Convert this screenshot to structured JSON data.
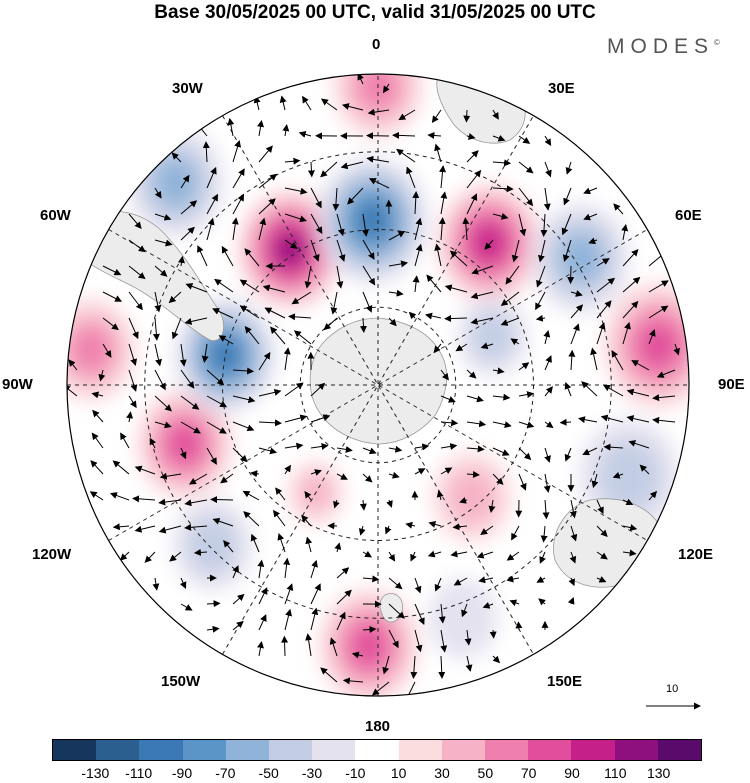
{
  "title": "Base 30/05/2025 00 UTC, valid 31/05/2025 00 UTC",
  "brand": "MODES",
  "brand_mark": "©",
  "longitude_labels": {
    "0": "0",
    "30E": "30E",
    "60E": "60E",
    "90E": "90E",
    "120E": "120E",
    "150E": "150E",
    "180": "180",
    "150W": "150W",
    "120W": "120W",
    "90W": "90W",
    "60W": "60W",
    "30W": "30W"
  },
  "reference_vector": "10",
  "colorbar": {
    "colors": [
      "#17365d",
      "#2a5f8f",
      "#3b79b4",
      "#5b95c7",
      "#8fb3d9",
      "#c2cde4",
      "#e4e2ef",
      "#ffffff",
      "#fbdcdf",
      "#f6b2c6",
      "#ef80ad",
      "#e14f9c",
      "#c51f8a",
      "#8e107f",
      "#5a0a6a"
    ],
    "ticks": [
      "-130",
      "-110",
      "-90",
      "-70",
      "-50",
      "-30",
      "-10",
      "10",
      "30",
      "50",
      "70",
      "90",
      "110",
      "130"
    ]
  },
  "anomaly_centers": [
    {
      "lon": 2,
      "colat": 0.84,
      "level": 4,
      "r": 50
    },
    {
      "lon": 46,
      "colat": 0.74,
      "level": -2,
      "r": 40
    },
    {
      "lon": 73,
      "colat": 0.65,
      "level": 4,
      "r": 48
    },
    {
      "lon": 97,
      "colat": 0.93,
      "level": 3,
      "r": 45
    },
    {
      "lon": 101,
      "colat": 0.5,
      "level": -5,
      "r": 50
    },
    {
      "lon": 147,
      "colat": 0.52,
      "level": 6,
      "r": 52
    },
    {
      "lon": 135,
      "colat": 0.92,
      "level": -3,
      "r": 48
    },
    {
      "lon": 178,
      "colat": 0.53,
      "level": -5,
      "r": 55
    },
    {
      "lon": 180,
      "colat": 0.96,
      "level": 3,
      "r": 45
    },
    {
      "lon": 218,
      "colat": 0.58,
      "level": 5,
      "r": 52
    },
    {
      "lon": 238,
      "colat": 0.77,
      "level": -3,
      "r": 48
    },
    {
      "lon": 262,
      "colat": 0.91,
      "level": 4,
      "r": 55
    },
    {
      "lon": 290,
      "colat": 0.86,
      "level": -2,
      "r": 50
    },
    {
      "lon": 320,
      "colat": 0.47,
      "level": 2,
      "r": 40
    },
    {
      "lon": 247,
      "colat": 0.4,
      "level": -2,
      "r": 35
    },
    {
      "lon": 340,
      "colat": 0.8,
      "level": -1,
      "r": 35
    },
    {
      "lon": 30,
      "colat": 0.4,
      "level": 2,
      "r": 28
    }
  ]
}
